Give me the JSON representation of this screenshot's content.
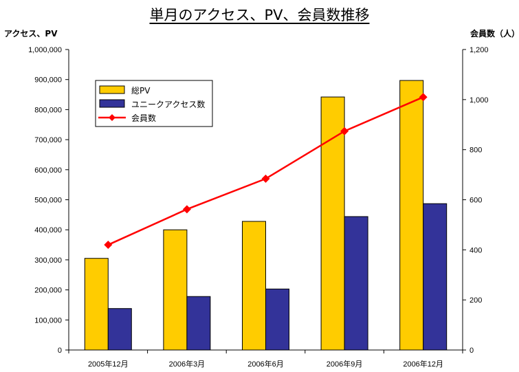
{
  "chart_data": {
    "type": "bar",
    "title": "単月のアクセス、PV、会員数推移",
    "y_left_label": "アクセス、PV",
    "y_right_label": "会員数（人）",
    "categories": [
      "2005年12月",
      "2006年3月",
      "2006年6月",
      "2006年9月",
      "2006年12月"
    ],
    "series": [
      {
        "name": "総PV",
        "type": "bar",
        "axis": "left",
        "color": "#ffcc00",
        "values": [
          305000,
          400000,
          428000,
          842000,
          897000
        ]
      },
      {
        "name": "ユニークアクセス数",
        "type": "bar",
        "axis": "left",
        "color": "#333399",
        "values": [
          138000,
          178000,
          203000,
          444000,
          487000
        ]
      },
      {
        "name": "会員数",
        "type": "line",
        "axis": "right",
        "color": "#ff0000",
        "marker": "diamond",
        "values": [
          420,
          562,
          684,
          874,
          1010
        ]
      }
    ],
    "ylim_left": [
      0,
      1000000
    ],
    "ylim_right": [
      0,
      1200
    ],
    "yticks_left": [
      "0",
      "100,000",
      "200,000",
      "300,000",
      "400,000",
      "500,000",
      "600,000",
      "700,000",
      "800,000",
      "900,000",
      "1,000,000"
    ],
    "yticks_right": [
      "0",
      "200",
      "400",
      "600",
      "800",
      "1,000",
      "1,200"
    ],
    "grid": false,
    "legend_position": "top-left"
  }
}
